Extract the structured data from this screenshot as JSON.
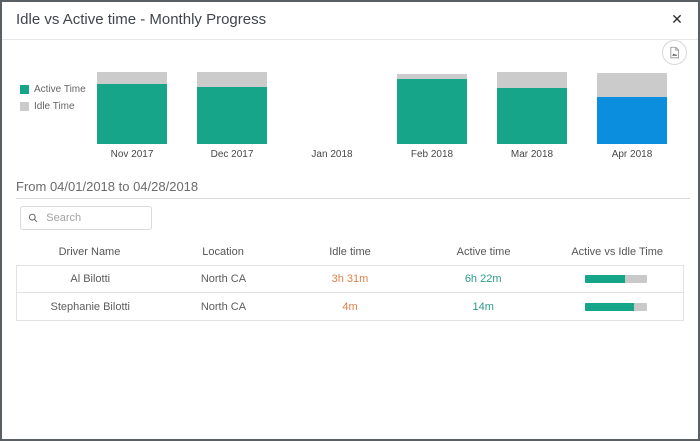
{
  "header": {
    "title": "Idle vs Active time - Monthly Progress",
    "close_glyph": "✕"
  },
  "chart_data": {
    "type": "bar",
    "stacked": true,
    "title": "Idle vs Active time - Monthly Progress",
    "categories": [
      "Nov 2017",
      "Dec 2017",
      "Jan 2018",
      "Feb 2018",
      "Mar 2018",
      "Apr 2018"
    ],
    "series": [
      {
        "name": "Active Time",
        "color": "#17a58a",
        "values": [
          60,
          57,
          0,
          65,
          56,
          47
        ]
      },
      {
        "name": "Idle Time",
        "color": "#cbcbcb",
        "values": [
          12,
          15,
          0,
          5,
          16,
          24
        ]
      }
    ],
    "units": "relative bar height in px (no y-axis shown)",
    "selected_category": "Apr 2018",
    "selected_color": "#0b8edd",
    "legend_position": "left",
    "grid": false
  },
  "range": {
    "label": "From 04/01/2018 to 04/28/2018"
  },
  "search": {
    "placeholder": "Search"
  },
  "table": {
    "columns": [
      "Driver Name",
      "Location",
      "Idle time",
      "Active time",
      "Active vs Idle Time"
    ],
    "rows": [
      {
        "driver": "Al Bilotti",
        "location": "North CA",
        "idle": "3h 31m",
        "active": "6h 22m",
        "active_pct": 64
      },
      {
        "driver": "Stephanie Bilotti",
        "location": "North CA",
        "idle": "4m",
        "active": "14m",
        "active_pct": 78
      }
    ]
  },
  "icons": {
    "close": "close-icon",
    "export": "export-image-icon",
    "search": "search-icon"
  },
  "colors": {
    "active_bar": "#17a58a",
    "idle_bar": "#cbcbcb",
    "selected_bar": "#0b8edd",
    "idle_text": "#e0814b",
    "active_text": "#2b9c8a",
    "progress_track": "#c9c9c9"
  }
}
